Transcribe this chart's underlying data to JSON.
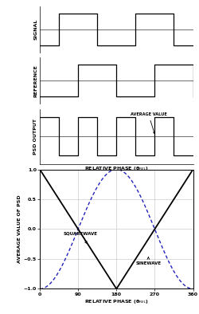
{
  "top_ylabel1": "SIGNAL",
  "top_ylabel2": "REFERENCE",
  "top_ylabel3": "PSD OUTPUT",
  "top_xlabel": "RELATIVE PHASE (θₘₑₗ)",
  "bottom_ylabel": "AVERAGE VALUE OF PSD",
  "bottom_xlabel": "RELATIVE PHASE (θREL)",
  "bottom_xticks": [
    0,
    90,
    180,
    270,
    360
  ],
  "bottom_yticks": [
    -1.0,
    -0.5,
    0,
    0.5,
    1.0
  ],
  "squarewave_label": "SQUAREWAVE",
  "sinewave_label": "SINEWAVE",
  "average_value_label": "AVERAGE VALUE",
  "line_color_square": "#000000",
  "line_color_sine": "#2222bb",
  "grid_color": "#cccccc",
  "bg_color": "#ffffff"
}
